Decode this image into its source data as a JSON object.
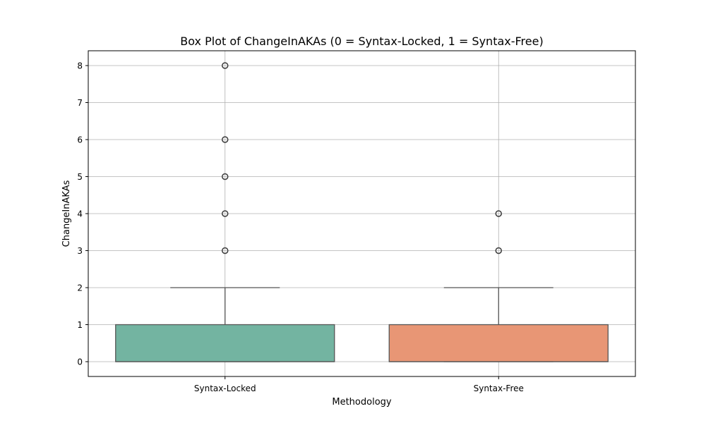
{
  "chart_data": {
    "type": "box",
    "title": "Box Plot of ChangeInAKAs (0 = Syntax-Locked, 1 = Syntax-Free)",
    "xlabel": "Methodology",
    "ylabel": "ChangeInAKAs",
    "categories": [
      "Syntax-Locked",
      "Syntax-Free"
    ],
    "ylim": [
      -0.4,
      8.4
    ],
    "yticks": [
      "0",
      "1",
      "2",
      "3",
      "4",
      "5",
      "6",
      "7",
      "8"
    ],
    "grid": true,
    "boxes": [
      {
        "category": "Syntax-Locked",
        "min": 0,
        "q1": 0,
        "median": 0,
        "q3": 1,
        "max": 2,
        "outliers": [
          3,
          4,
          5,
          6,
          8
        ],
        "color": "#73b4a1"
      },
      {
        "category": "Syntax-Free",
        "min": 0,
        "q1": 0,
        "median": 0,
        "q3": 1,
        "max": 2,
        "outliers": [
          3,
          4
        ],
        "color": "#e89675"
      }
    ]
  }
}
